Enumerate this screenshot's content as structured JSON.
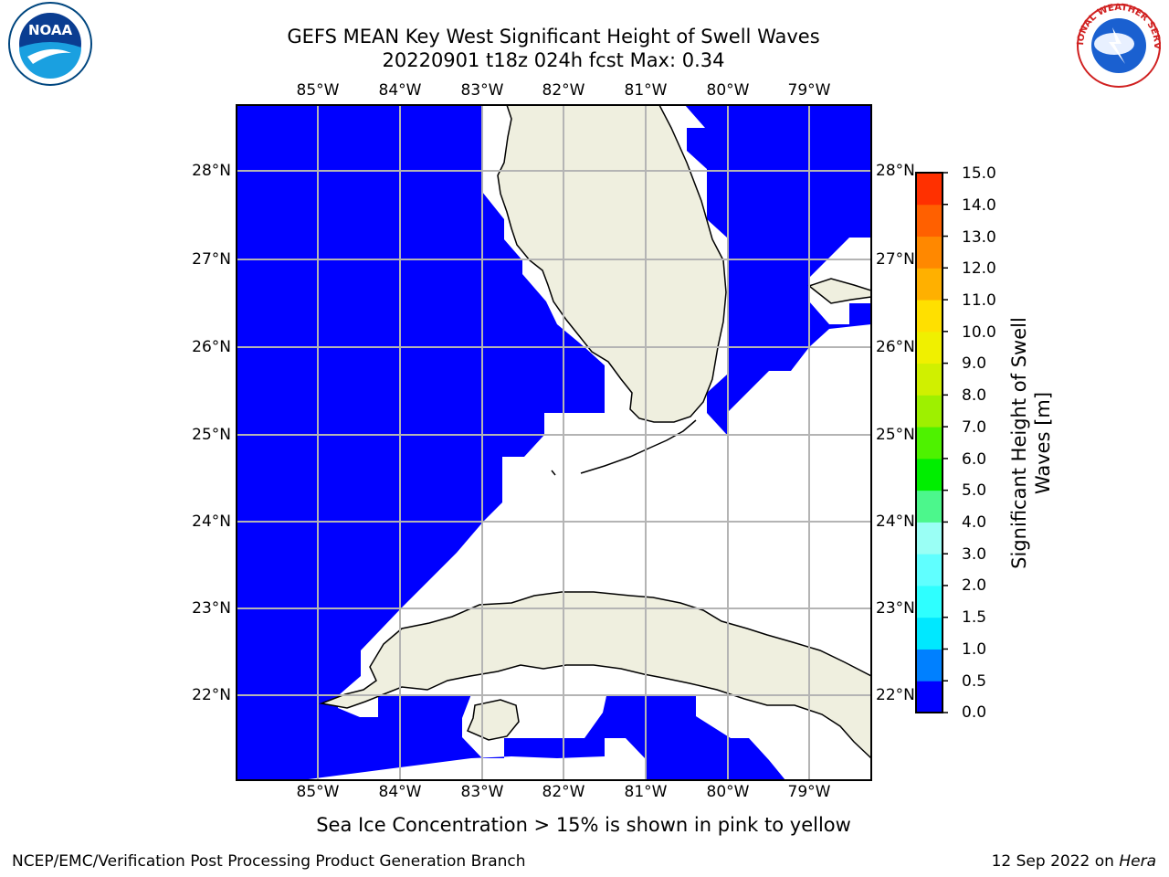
{
  "title": {
    "line1": "GEFS MEAN Key West Significant Height of Swell Waves",
    "line2": "20220901 t18z 024h fcst   Max: 0.34"
  },
  "map": {
    "lon_labels": [
      "85°W",
      "84°W",
      "83°W",
      "82°W",
      "81°W",
      "80°W",
      "79°W"
    ],
    "lat_labels": [
      "28°N",
      "27°N",
      "26°N",
      "25°N",
      "24°N",
      "23°N",
      "22°N"
    ],
    "colors": {
      "wave": "#0000ff",
      "land": "#efefdf",
      "grid": "#b4b4b4"
    }
  },
  "colorbar": {
    "title": "Significant Height of Swell Waves [m]",
    "labels": [
      "15.0",
      "14.0",
      "13.0",
      "12.0",
      "11.0",
      "10.0",
      "9.0",
      "8.0",
      "7.0",
      "6.0",
      "5.0",
      "4.0",
      "3.0",
      "2.0",
      "1.5",
      "1.0",
      "0.5",
      "0.0"
    ],
    "colors": [
      "#0000ff",
      "#0080ff",
      "#00e8ff",
      "#2effff",
      "#60ffff",
      "#9afff5",
      "#4cf78c",
      "#00ee00",
      "#4ef200",
      "#9ef000",
      "#d0f000",
      "#f0f000",
      "#ffe000",
      "#ffb000",
      "#ff8800",
      "#ff6000",
      "#ff3000",
      "#ff0000"
    ]
  },
  "footer": {
    "note": "Sea Ice Concentration > 15% is shown in pink to yellow",
    "credit": "NCEP/EMC/Verification Post Processing Product Generation Branch",
    "date": "12 Sep 2022 on ",
    "host": "Hera"
  },
  "logos": {
    "noaa": "NOAA",
    "nws": "NATIONAL WEATHER SERVICE"
  }
}
